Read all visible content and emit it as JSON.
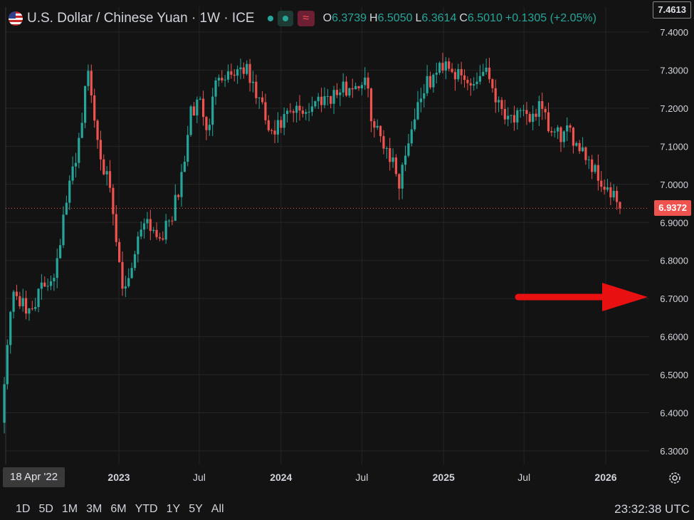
{
  "header": {
    "title": "U.S. Dollar / Chinese Yuan · 1W · ICE",
    "ohlc": [
      {
        "key": "O",
        "value": "6.3739"
      },
      {
        "key": "H",
        "value": "6.5050"
      },
      {
        "key": "L",
        "value": "6.3614"
      },
      {
        "key": "C",
        "value": "6.5010"
      }
    ],
    "change": "+0.1305 (+2.05%)",
    "compare_icon": "≈"
  },
  "price_tags": {
    "top": "7.4613",
    "last": "6.9372"
  },
  "cursor_date": "18 Apr '22",
  "timeframes": [
    "1D",
    "5D",
    "1M",
    "3M",
    "6M",
    "YTD",
    "1Y",
    "5Y",
    "All"
  ],
  "clock": "23:32:38 UTC",
  "colors": {
    "up": "#26a69a",
    "down": "#ef5350",
    "background": "#131313",
    "grid": "#242424",
    "arrow": "#e81010"
  },
  "icons": [
    "us-flag-icon",
    "market-status-dot-icon",
    "compare-icon",
    "settings-gear-icon",
    "right-arrow-annotation-icon"
  ],
  "chart_data": {
    "type": "candlestick",
    "interval": "1W",
    "y_axis_ticks": [
      7.4,
      7.3,
      7.2,
      7.1,
      7.0,
      6.9,
      6.8,
      6.7,
      6.6,
      6.5,
      6.4,
      6.3
    ],
    "y_axis_labels": [
      "7.4000",
      "7.3000",
      "7.2000",
      "7.1000",
      "7.0000",
      "6.9000",
      "6.8000",
      "6.7000",
      "6.6000",
      "6.5000",
      "6.4000",
      "6.3000"
    ],
    "x_axis_labels": [
      {
        "label": "2023",
        "date": "2023-01-01"
      },
      {
        "label": "Jul",
        "date": "2023-07-01"
      },
      {
        "label": "2024",
        "date": "2024-01-01"
      },
      {
        "label": "Jul",
        "date": "2024-07-01"
      },
      {
        "label": "2025",
        "date": "2025-01-01"
      },
      {
        "label": "Jul",
        "date": "2025-07-01"
      },
      {
        "label": "2026",
        "date": "2026-01-01"
      }
    ],
    "ylim": [
      6.25,
      7.47
    ],
    "last_price": 6.9372,
    "annotation": "red arrow pointing right at 6.7000 on the price axis",
    "close_path": [
      [
        "2022-04-18",
        6.5
      ],
      [
        "2022-05-09",
        6.73
      ],
      [
        "2022-06-06",
        6.66
      ],
      [
        "2022-07-04",
        6.71
      ],
      [
        "2022-08-08",
        6.77
      ],
      [
        "2022-09-05",
        6.95
      ],
      [
        "2022-10-03",
        7.12
      ],
      [
        "2022-10-24",
        7.3
      ],
      [
        "2022-11-07",
        7.17
      ],
      [
        "2022-11-28",
        7.05
      ],
      [
        "2022-12-12",
        6.97
      ],
      [
        "2023-01-09",
        6.72
      ],
      [
        "2023-01-23",
        6.76
      ],
      [
        "2023-02-27",
        6.92
      ],
      [
        "2023-03-27",
        6.87
      ],
      [
        "2023-04-17",
        6.88
      ],
      [
        "2023-05-15",
        6.97
      ],
      [
        "2023-06-12",
        7.18
      ],
      [
        "2023-07-03",
        7.23
      ],
      [
        "2023-07-17",
        7.13
      ],
      [
        "2023-08-14",
        7.3
      ],
      [
        "2023-09-04",
        7.29
      ],
      [
        "2023-10-09",
        7.31
      ],
      [
        "2023-11-13",
        7.22
      ],
      [
        "2023-12-11",
        7.12
      ],
      [
        "2024-01-08",
        7.17
      ],
      [
        "2024-02-05",
        7.19
      ],
      [
        "2024-03-04",
        7.2
      ],
      [
        "2024-04-01",
        7.23
      ],
      [
        "2024-05-06",
        7.24
      ],
      [
        "2024-06-10",
        7.26
      ],
      [
        "2024-07-08",
        7.27
      ],
      [
        "2024-07-29",
        7.15
      ],
      [
        "2024-08-26",
        7.1
      ],
      [
        "2024-09-23",
        7.01
      ],
      [
        "2024-10-14",
        7.12
      ],
      [
        "2024-11-11",
        7.24
      ],
      [
        "2024-12-09",
        7.28
      ],
      [
        "2025-01-06",
        7.33
      ],
      [
        "2025-02-03",
        7.28
      ],
      [
        "2025-03-03",
        7.26
      ],
      [
        "2025-04-07",
        7.31
      ],
      [
        "2025-05-05",
        7.21
      ],
      [
        "2025-06-02",
        7.18
      ],
      [
        "2025-07-07",
        7.17
      ],
      [
        "2025-08-04",
        7.2
      ],
      [
        "2025-09-01",
        7.13
      ],
      [
        "2025-10-06",
        7.13
      ],
      [
        "2025-11-03",
        7.11
      ],
      [
        "2025-12-01",
        7.05
      ],
      [
        "2026-01-05",
        6.98
      ],
      [
        "2026-02-02",
        6.94
      ]
    ]
  }
}
